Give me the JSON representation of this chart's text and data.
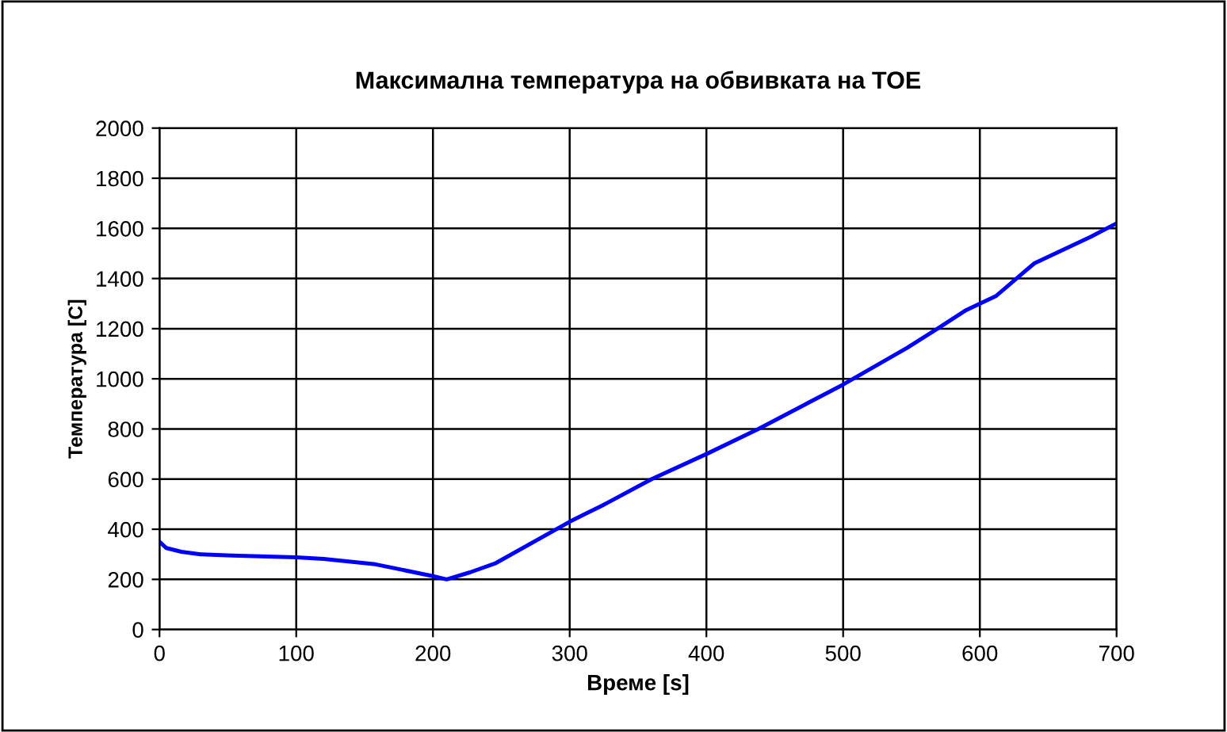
{
  "chart_data": {
    "type": "line",
    "title": "Максимална температура на обвивката на TOE",
    "xlabel": "Време [s]",
    "ylabel": "Температура [C]",
    "x": [
      0,
      5,
      16,
      30,
      53,
      100,
      120,
      158,
      200,
      210,
      227,
      246,
      300,
      311,
      324,
      360,
      400,
      438,
      500,
      547,
      569,
      590,
      612,
      633,
      640,
      681,
      700
    ],
    "series": [
      {
        "color": "#0000ff",
        "values": [
          350,
          325,
          310,
          300,
          295,
          288,
          282,
          260,
          213,
          200,
          228,
          265,
          430,
          460,
          495,
          600,
          700,
          800,
          977,
          1124,
          1200,
          1274,
          1331,
          1429,
          1461,
          1566,
          1620
        ]
      }
    ],
    "xlim": [
      0,
      700
    ],
    "xticks": [
      0,
      100,
      200,
      300,
      400,
      500,
      600,
      700
    ],
    "ylim": [
      0,
      2000
    ],
    "yticks": [
      0,
      200,
      400,
      600,
      800,
      1000,
      1200,
      1400,
      1600,
      1800,
      2000
    ],
    "grid": true,
    "legend": false,
    "marker": "none",
    "line_style": "solid"
  }
}
